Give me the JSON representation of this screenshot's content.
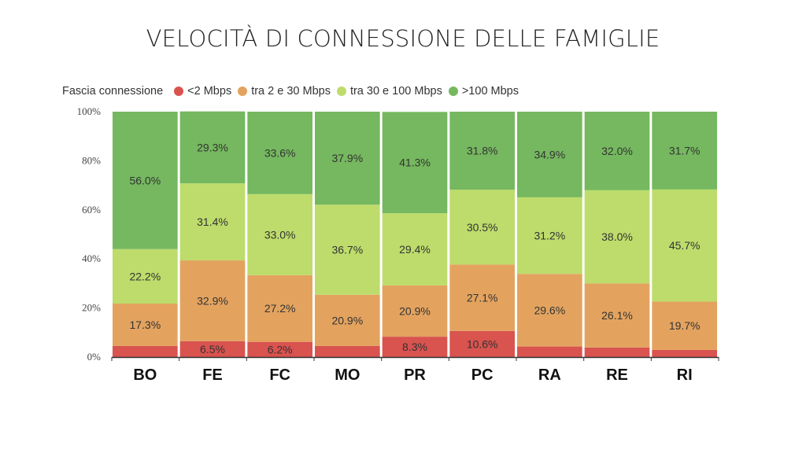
{
  "title": "VELOCITÀ DI CONNESSIONE DELLE FAMIGLIE",
  "legend": {
    "title": "Fascia connessione",
    "items": [
      {
        "label": "<2 Mbps",
        "color": "#d9534f"
      },
      {
        "label": "tra 2 e 30 Mbps",
        "color": "#e3a35f"
      },
      {
        "label": "tra 30 e 100 Mbps",
        "color": "#bddc6b"
      },
      {
        "label": ">100 Mbps",
        "color": "#75b85f"
      }
    ]
  },
  "chart_data": {
    "type": "bar",
    "stacked": true,
    "categories": [
      "BO",
      "FE",
      "FC",
      "MO",
      "PR",
      "PC",
      "RA",
      "RE",
      "RI"
    ],
    "series": [
      {
        "name": "<2 Mbps",
        "color": "#d9534f",
        "values": [
          4.5,
          6.5,
          6.2,
          4.5,
          8.3,
          10.6,
          4.3,
          3.9,
          2.9
        ],
        "labels": [
          "",
          "6.5%",
          "6.2%",
          "",
          "8.3%",
          "10.6%",
          "",
          "",
          ""
        ]
      },
      {
        "name": "tra 2 e 30 Mbps",
        "color": "#e3a35f",
        "values": [
          17.3,
          32.9,
          27.2,
          20.9,
          20.9,
          27.1,
          29.6,
          26.1,
          19.7
        ],
        "labels": [
          "17.3%",
          "32.9%",
          "27.2%",
          "20.9%",
          "20.9%",
          "27.1%",
          "29.6%",
          "26.1%",
          "19.7%"
        ]
      },
      {
        "name": "tra 30 e 100 Mbps",
        "color": "#bddc6b",
        "values": [
          22.2,
          31.4,
          33.0,
          36.7,
          29.4,
          30.5,
          31.2,
          38.0,
          45.7
        ],
        "labels": [
          "22.2%",
          "31.4%",
          "33.0%",
          "36.7%",
          "29.4%",
          "30.5%",
          "31.2%",
          "38.0%",
          "45.7%"
        ]
      },
      {
        "name": ">100 Mbps",
        "color": "#75b85f",
        "values": [
          56.0,
          29.3,
          33.6,
          37.9,
          41.3,
          31.8,
          34.9,
          32.0,
          31.7
        ],
        "labels": [
          "56.0%",
          "29.3%",
          "33.6%",
          "37.9%",
          "41.3%",
          "31.8%",
          "34.9%",
          "32.0%",
          "31.7%"
        ]
      }
    ],
    "yticks": [
      "0%",
      "20%",
      "40%",
      "60%",
      "80%",
      "100%"
    ],
    "ylim": [
      0,
      100
    ],
    "legend_position": "top-left"
  }
}
